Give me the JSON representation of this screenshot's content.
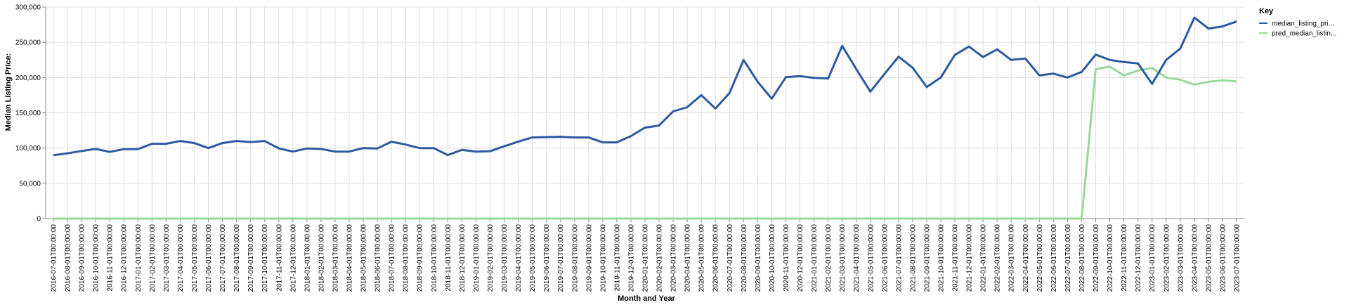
{
  "chart_data": {
    "type": "line",
    "xlabel": "Month and Year",
    "ylabel": "Median Listing Price:",
    "ylim": [
      0,
      300000
    ],
    "yticks": [
      "0",
      "50,000",
      "100,000",
      "150,000",
      "200,000",
      "250,000",
      "300,000"
    ],
    "grid": true,
    "legend": {
      "title": "Key",
      "position": "right"
    },
    "x": [
      "2016-07-01T00:00:00",
      "2016-08-01T00:00:00",
      "2016-09-01T00:00:00",
      "2016-10-01T00:00:00",
      "2016-11-01T00:00:00",
      "2016-12-01T00:00:00",
      "2017-01-01T00:00:00",
      "2017-02-01T00:00:00",
      "2017-03-01T00:00:00",
      "2017-04-01T00:00:00",
      "2017-05-01T00:00:00",
      "2017-06-01T00:00:00",
      "2017-07-01T00:00:00",
      "2017-08-01T00:00:00",
      "2017-09-01T00:00:00",
      "2017-10-01T00:00:00",
      "2017-11-01T00:00:00",
      "2017-12-01T00:00:00",
      "2018-01-01T00:00:00",
      "2018-02-01T00:00:00",
      "2018-03-01T00:00:00",
      "2018-04-01T00:00:00",
      "2018-05-01T00:00:00",
      "2018-06-01T00:00:00",
      "2018-07-01T00:00:00",
      "2018-08-01T00:00:00",
      "2018-09-01T00:00:00",
      "2018-10-01T00:00:00",
      "2018-11-01T00:00:00",
      "2018-12-01T00:00:00",
      "2019-01-01T00:00:00",
      "2019-02-01T00:00:00",
      "2019-03-01T00:00:00",
      "2019-04-01T00:00:00",
      "2019-05-01T00:00:00",
      "2019-06-01T00:00:00",
      "2019-07-01T00:00:00",
      "2019-08-01T00:00:00",
      "2019-09-01T00:00:00",
      "2019-10-01T00:00:00",
      "2019-11-01T00:00:00",
      "2019-12-01T00:00:00",
      "2020-01-01T00:00:00",
      "2020-02-01T00:00:00",
      "2020-03-01T00:00:00",
      "2020-04-01T00:00:00",
      "2020-05-01T00:00:00",
      "2020-06-01T00:00:00",
      "2020-07-01T00:00:00",
      "2020-08-01T00:00:00",
      "2020-09-01T00:00:00",
      "2020-10-01T00:00:00",
      "2020-11-01T00:00:00",
      "2020-12-01T00:00:00",
      "2021-01-01T00:00:00",
      "2021-02-01T00:00:00",
      "2021-03-01T00:00:00",
      "2021-04-01T00:00:00",
      "2021-05-01T00:00:00",
      "2021-06-01T00:00:00",
      "2021-07-01T00:00:00",
      "2021-08-01T00:00:00",
      "2021-09-01T00:00:00",
      "2021-10-01T00:00:00",
      "2021-11-01T00:00:00",
      "2021-12-01T00:00:00",
      "2022-01-01T00:00:00",
      "2022-02-01T00:00:00",
      "2022-03-01T00:00:00",
      "2022-04-01T00:00:00",
      "2022-05-01T00:00:00",
      "2022-06-01T00:00:00",
      "2022-07-01T00:00:00",
      "2022-08-01T00:00:00",
      "2022-09-01T00:00:00",
      "2022-10-01T00:00:00",
      "2022-11-01T00:00:00",
      "2022-12-01T00:00:00",
      "2023-01-01T00:00:00",
      "2023-02-01T00:00:00",
      "2023-03-01T00:00:00",
      "2023-04-01T00:00:00",
      "2023-05-01T00:00:00",
      "2023-06-01T00:00:00",
      "2023-07-01T00:00:00"
    ],
    "series": [
      {
        "name": "median_listing_pri...",
        "color": "#2c5aa0",
        "values": [
          90000,
          92500,
          95800,
          98800,
          94500,
          98500,
          98600,
          106000,
          106000,
          110000,
          107000,
          100000,
          107000,
          110000,
          108500,
          110000,
          99500,
          95000,
          99500,
          98700,
          95000,
          95000,
          100000,
          99500,
          109000,
          105000,
          100000,
          100000,
          90000,
          97500,
          95000,
          95500,
          102500,
          109000,
          115000,
          115500,
          116000,
          115000,
          115000,
          108000,
          108000,
          117000,
          129000,
          132000,
          152000,
          158000,
          175000,
          156000,
          178000,
          225000,
          194000,
          170000,
          200500,
          202000,
          199500,
          198500,
          245000,
          212000,
          180000,
          205000,
          229500,
          214000,
          186500,
          200000,
          232000,
          244000,
          229000,
          240000,
          225000,
          227000,
          203000,
          205500,
          200000,
          208000,
          232500,
          225000,
          222000,
          220000,
          191000,
          225000,
          241000,
          285000,
          269500,
          272500,
          279500
        ]
      },
      {
        "name": "pred_median_listin...",
        "color": "#98d99a",
        "values": [
          0,
          0,
          0,
          0,
          0,
          0,
          0,
          0,
          0,
          0,
          0,
          0,
          0,
          0,
          0,
          0,
          0,
          0,
          0,
          0,
          0,
          0,
          0,
          0,
          0,
          0,
          0,
          0,
          0,
          0,
          0,
          0,
          0,
          0,
          0,
          0,
          0,
          0,
          0,
          0,
          0,
          0,
          0,
          0,
          0,
          0,
          0,
          0,
          0,
          0,
          0,
          0,
          0,
          0,
          0,
          0,
          0,
          0,
          0,
          0,
          0,
          0,
          0,
          0,
          0,
          0,
          0,
          0,
          0,
          0,
          0,
          0,
          0,
          0,
          212000,
          215500,
          203000,
          210000,
          213500,
          200000,
          197000,
          190000,
          194000,
          196000,
          194500
        ]
      }
    ]
  }
}
